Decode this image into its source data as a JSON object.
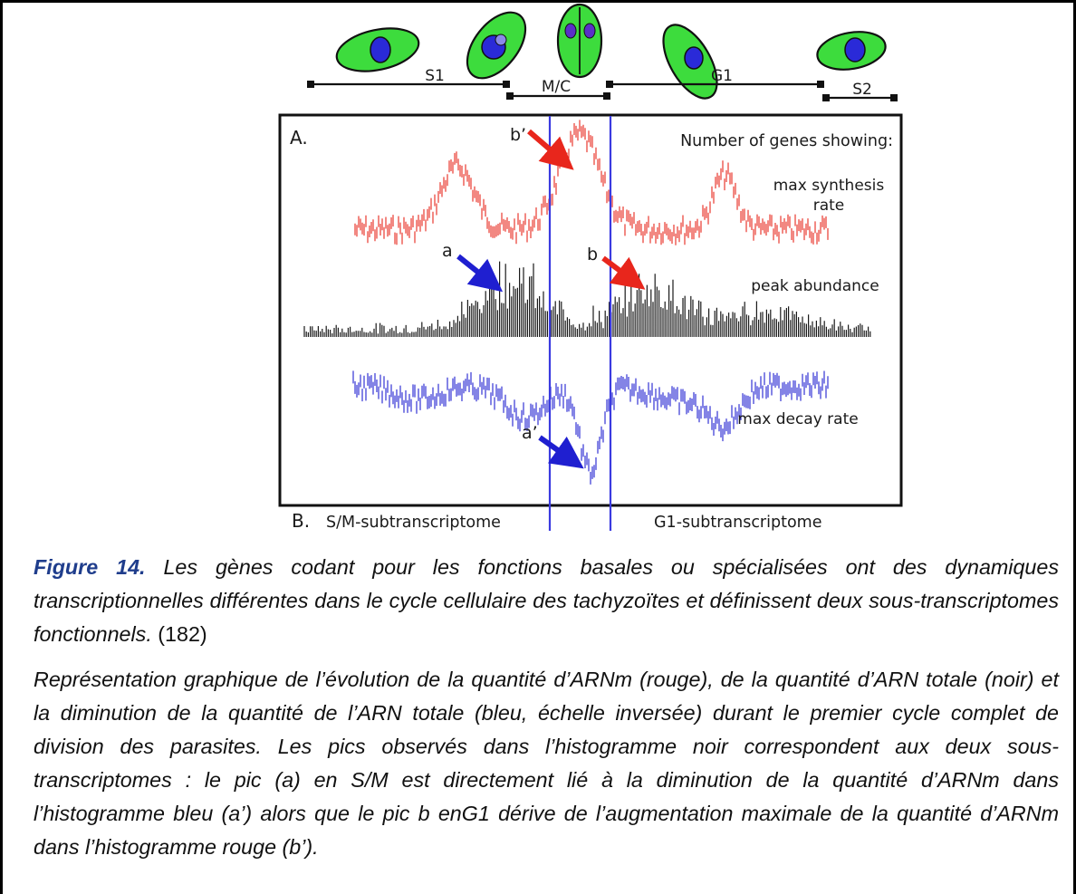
{
  "figure": {
    "phases": [
      "S1",
      "M/C",
      "G1",
      "S2"
    ],
    "panel_a_label": "A.",
    "panel_b_label": "B.",
    "legend_header": "Number of genes showing:",
    "series": [
      {
        "name": "max synthesis rate",
        "color": "#e8261c",
        "lines": [
          "max synthesis",
          "rate"
        ]
      },
      {
        "name": "peak abundance",
        "color": "#1a1a1a",
        "lines": [
          "peak abundance"
        ]
      },
      {
        "name": "max decay rate",
        "color": "#1f1fd0",
        "lines": [
          "max decay rate"
        ]
      }
    ],
    "annotations": [
      {
        "text": "b’",
        "color": "#e8261c"
      },
      {
        "text": "a",
        "color": "#1f1fd0"
      },
      {
        "text": "b",
        "color": "#e8261c"
      },
      {
        "text": "a’",
        "color": "#1f1fd0"
      }
    ],
    "subtranscriptomes": [
      "S/M-subtranscriptome",
      "G1-subtranscriptome"
    ],
    "colors": {
      "cell_fill": "#3ddc3d",
      "nucleus": "#2a2ad8",
      "divider": "#3a3ae0"
    }
  },
  "caption": {
    "figure_label": "Figure 14.",
    "title": "Les gènes codant pour les fonctions basales ou spécialisées ont des dynamiques transcriptionnelles différentes dans le cycle cellulaire des tachyzoïtes et définissent deux sous-transcriptomes fonctionnels.",
    "citation": "(182)",
    "description": "Représentation graphique de l’évolution de la quantité d’ARNm (rouge), de la quantité d’ARN totale (noir) et la diminution de la quantité de l’ARN totale (bleu, échelle inversée) durant le premier cycle complet de division des parasites. Les pics observés dans l’histogramme noir correspondent aux deux sous-transcriptomes : le pic (a) en S/M est directement lié à la diminution de la quantité d’ARNm dans l’histogramme bleu (a’) alors que le pic b enG1 dérive de l’augmentation maximale de la quantité d’ARNm dans l’histogramme rouge (b’)."
  }
}
